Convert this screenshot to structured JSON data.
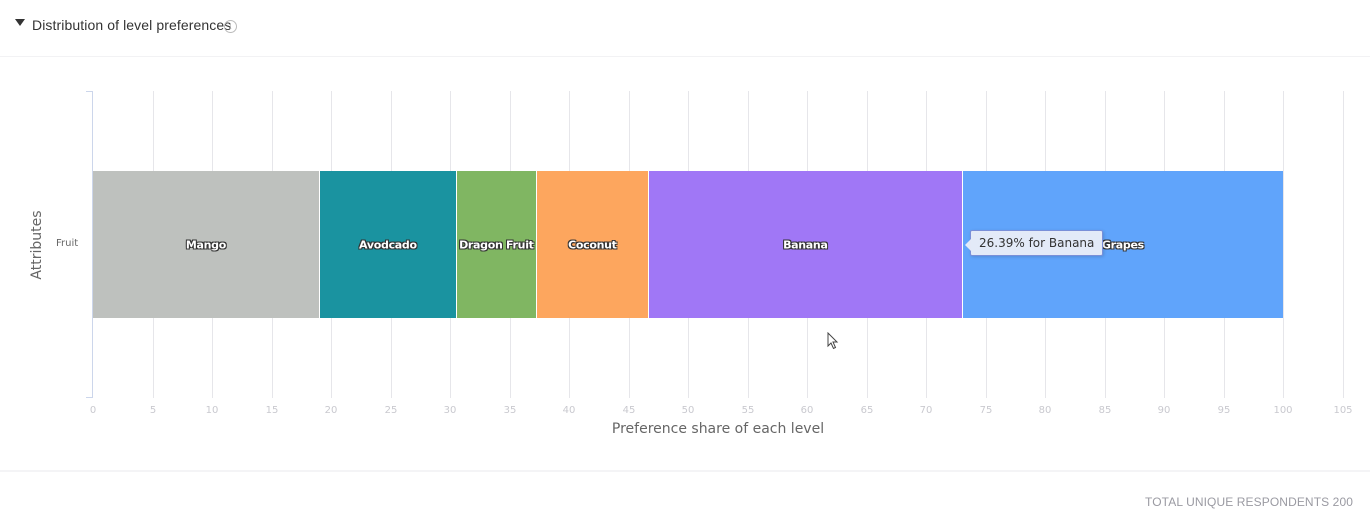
{
  "header": {
    "title": "Distribution of level preferences",
    "collapse_icon": "caret-down-icon",
    "info_icon": "info-icon",
    "info_glyph": "i"
  },
  "chart_data": {
    "type": "bar",
    "orientation": "horizontal",
    "stacked": true,
    "title": "Distribution of level preferences",
    "xlabel": "Preference share of each level",
    "ylabel": "Attributes",
    "categories": [
      "Fruit"
    ],
    "series": [
      {
        "name": "Mango",
        "values": [
          19.07
        ],
        "color": "#bec1be"
      },
      {
        "name": "Avodcado",
        "values": [
          11.51
        ],
        "color": "#1a93a0"
      },
      {
        "name": "Dragon Fruit",
        "values": [
          6.72
        ],
        "color": "#80b662"
      },
      {
        "name": "Coconut",
        "values": [
          9.41
        ],
        "color": "#fda65e"
      },
      {
        "name": "Banana",
        "values": [
          26.39
        ],
        "color": "#a077f6"
      },
      {
        "name": "Grapes",
        "values": [
          26.9
        ],
        "color": "#60a4fb"
      }
    ],
    "xlim": [
      0,
      105
    ],
    "xticks": [
      0,
      5,
      10,
      15,
      20,
      25,
      30,
      35,
      40,
      45,
      50,
      55,
      60,
      65,
      70,
      75,
      80,
      85,
      90,
      95,
      100,
      105
    ],
    "grid": true,
    "legend": "none (labels inside segments)",
    "tooltip": "26.39% for Banana"
  },
  "footer": {
    "respondents_label": "TOTAL UNIQUE RESPONDENTS 200"
  }
}
